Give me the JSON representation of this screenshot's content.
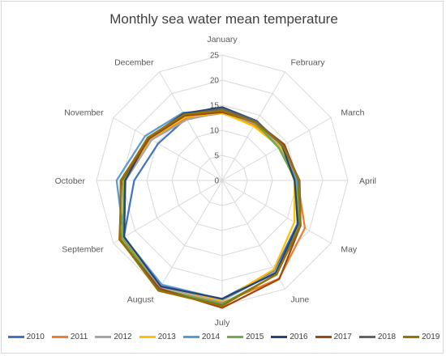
{
  "chart_data": {
    "type": "radar",
    "title": "Monthly sea water mean temperature",
    "categories": [
      "January",
      "February",
      "March",
      "April",
      "May",
      "June",
      "July",
      "August",
      "September",
      "October",
      "November",
      "December"
    ],
    "ticks": [
      0,
      5,
      10,
      15,
      20,
      25
    ],
    "rlim": [
      0,
      25
    ],
    "grid": true,
    "legend_position": "bottom",
    "series": [
      {
        "name": "2010",
        "color": "#4472c4",
        "values": [
          13.7,
          13.0,
          13.2,
          14.5,
          17.3,
          20.8,
          23.6,
          24.5,
          22.6,
          17.5,
          14.7,
          14.3
        ]
      },
      {
        "name": "2011",
        "color": "#ed7d31",
        "values": [
          13.4,
          12.8,
          13.4,
          15.0,
          19.0,
          22.6,
          24.4,
          25.0,
          23.0,
          19.5,
          16.6,
          14.3
        ]
      },
      {
        "name": "2012",
        "color": "#a5a5a5",
        "values": [
          13.6,
          13.1,
          13.4,
          14.8,
          17.8,
          21.0,
          24.0,
          24.6,
          22.6,
          19.2,
          16.2,
          14.0
        ]
      },
      {
        "name": "2013",
        "color": "#ffc000",
        "values": [
          13.5,
          12.5,
          13.3,
          14.4,
          16.6,
          20.5,
          23.9,
          24.2,
          22.8,
          19.5,
          16.6,
          14.6
        ]
      },
      {
        "name": "2014",
        "color": "#5b9bd5",
        "values": [
          14.0,
          13.2,
          13.0,
          15.0,
          17.6,
          21.3,
          23.7,
          24.0,
          22.6,
          21.0,
          17.7,
          15.6
        ]
      },
      {
        "name": "2015",
        "color": "#70ad47",
        "values": [
          14.2,
          13.2,
          13.0,
          14.6,
          17.8,
          21.7,
          24.6,
          25.0,
          22.9,
          19.6,
          16.8,
          15.0
        ]
      },
      {
        "name": "2016",
        "color": "#264478",
        "values": [
          14.6,
          13.7,
          13.8,
          14.4,
          17.4,
          21.3,
          23.6,
          24.4,
          22.5,
          19.3,
          16.9,
          15.4
        ]
      },
      {
        "name": "2017",
        "color": "#9e480e",
        "values": [
          13.6,
          13.4,
          14.3,
          15.2,
          18.0,
          22.7,
          25.4,
          24.9,
          23.6,
          20.0,
          16.7,
          14.9
        ]
      },
      {
        "name": "2018",
        "color": "#636363",
        "values": [
          14.3,
          13.6,
          14.0,
          15.4,
          18.0,
          21.6,
          24.9,
          25.3,
          23.4,
          20.2,
          17.0,
          15.1
        ]
      },
      {
        "name": "2019",
        "color": "#997300",
        "values": [
          13.9,
          13.3,
          13.9,
          15.3,
          17.9,
          21.6,
          25.0,
          25.4,
          23.5,
          20.1,
          17.1,
          15.2
        ]
      }
    ]
  }
}
